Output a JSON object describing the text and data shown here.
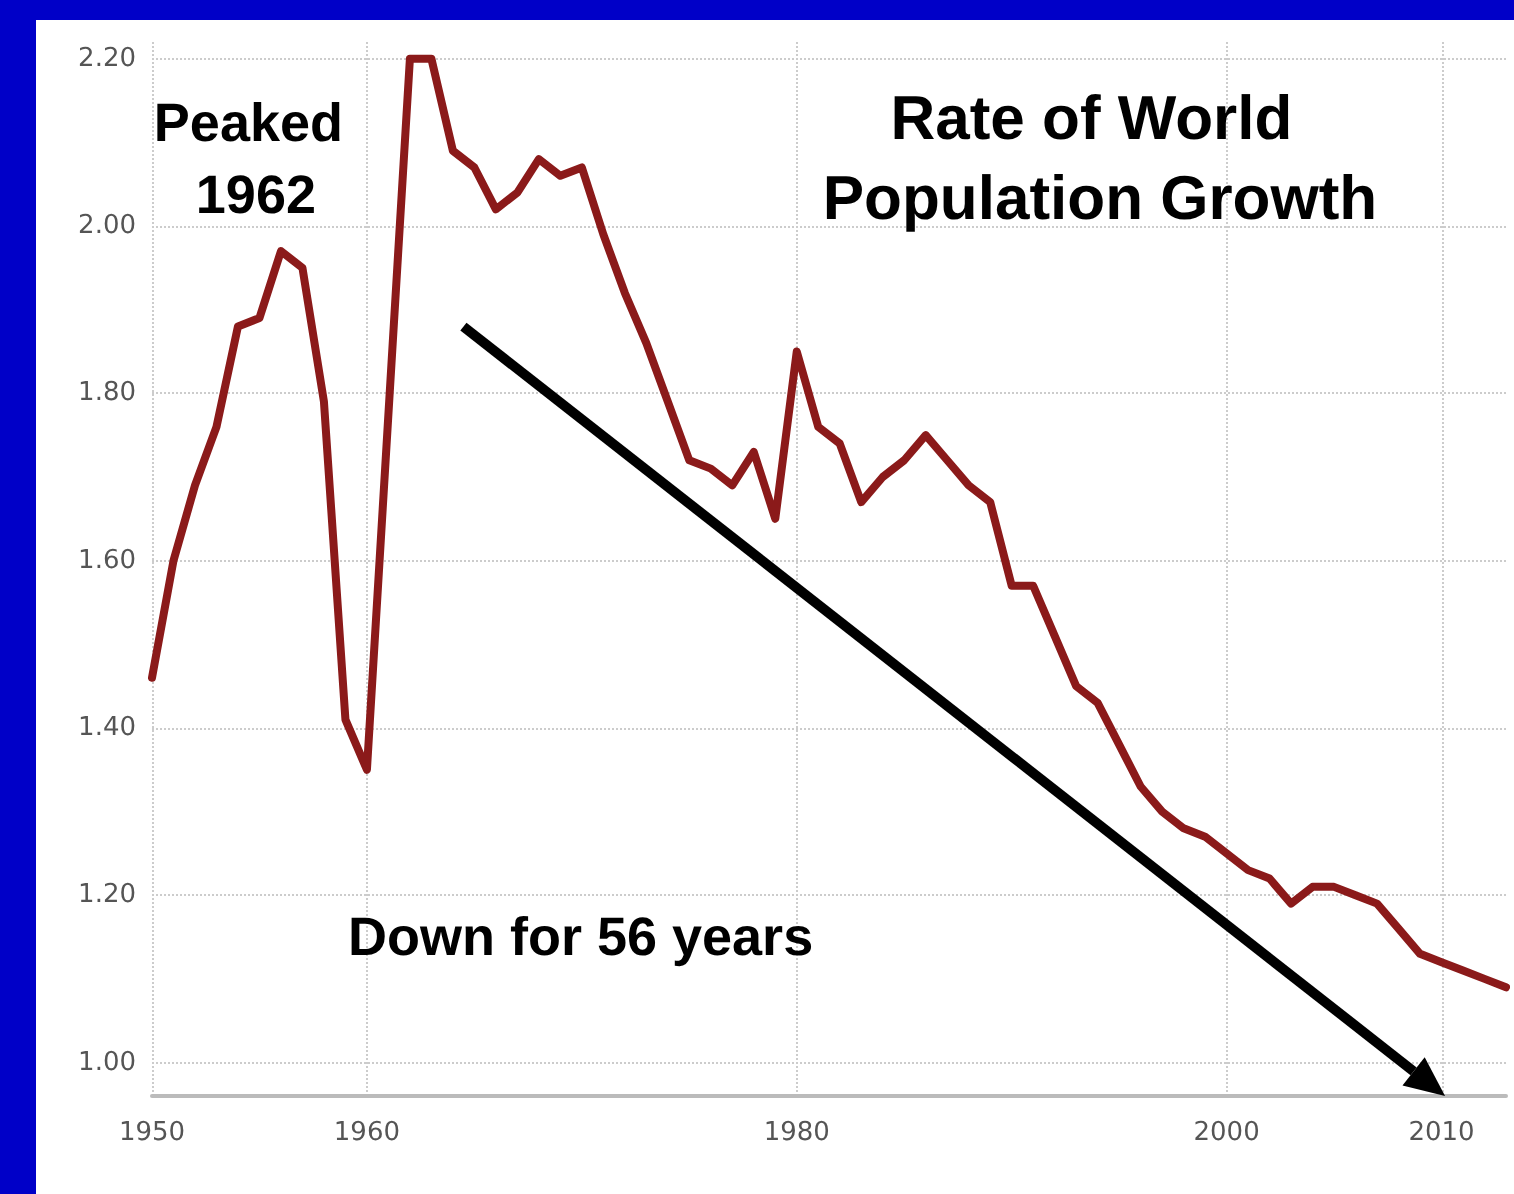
{
  "chart_data": {
    "type": "line",
    "title": "Rate of World Population Growth",
    "annotations": [
      {
        "text": "Peaked 1962",
        "x": 1962,
        "y": 2.2
      },
      "Down for 56 years"
    ],
    "series": [
      {
        "color": "#8b1a1a",
        "x": [
          1950,
          1951,
          1952,
          1953,
          1954,
          1955,
          1956,
          1957,
          1958,
          1959,
          1960,
          1962,
          1963,
          1964,
          1965,
          1966,
          1967,
          1968,
          1969,
          1970,
          1971,
          1972,
          1973,
          1974,
          1975,
          1976,
          1977,
          1978,
          1979,
          1980,
          1981,
          1982,
          1983,
          1984,
          1985,
          1986,
          1987,
          1988,
          1989,
          1990,
          1991,
          1992,
          1993,
          1994,
          1995,
          1996,
          1997,
          1998,
          1999,
          2000,
          2001,
          2002,
          2003,
          2004,
          2005,
          2006,
          2007,
          2008,
          2009,
          2010,
          2011,
          2012,
          2013
        ],
        "values": [
          1.46,
          1.6,
          1.69,
          1.76,
          1.88,
          1.89,
          1.97,
          1.95,
          1.79,
          1.41,
          1.35,
          2.2,
          2.2,
          2.09,
          2.07,
          2.02,
          2.04,
          2.08,
          2.06,
          2.07,
          1.99,
          1.92,
          1.86,
          1.79,
          1.72,
          1.71,
          1.69,
          1.73,
          1.65,
          1.85,
          1.76,
          1.74,
          1.67,
          1.7,
          1.72,
          1.75,
          1.72,
          1.69,
          1.67,
          1.57,
          1.57,
          1.51,
          1.45,
          1.43,
          1.38,
          1.33,
          1.3,
          1.28,
          1.27,
          1.25,
          1.23,
          1.22,
          1.19,
          1.21,
          1.21,
          1.2,
          1.19,
          1.16,
          1.13,
          1.12,
          1.11,
          1.1,
          1.09
        ]
      }
    ],
    "xlim": [
      1950,
      2013
    ],
    "xticks": [
      1950,
      1960,
      1980,
      2000,
      2010
    ],
    "ylim": [
      0.96,
      2.22
    ],
    "yticks": [
      {
        "value": 1,
        "label": "1.00"
      },
      {
        "value": 1.2,
        "label": "1.20"
      },
      {
        "value": 1.4,
        "label": "1.40"
      },
      {
        "value": 1.6,
        "label": "1.60"
      },
      {
        "value": 1.8,
        "label": "1.80"
      },
      {
        "value": 2,
        "label": "2.00"
      },
      {
        "value": 2.2,
        "label": "2.20"
      }
    ],
    "grid": true,
    "marker": "none",
    "line_style": "solid"
  }
}
